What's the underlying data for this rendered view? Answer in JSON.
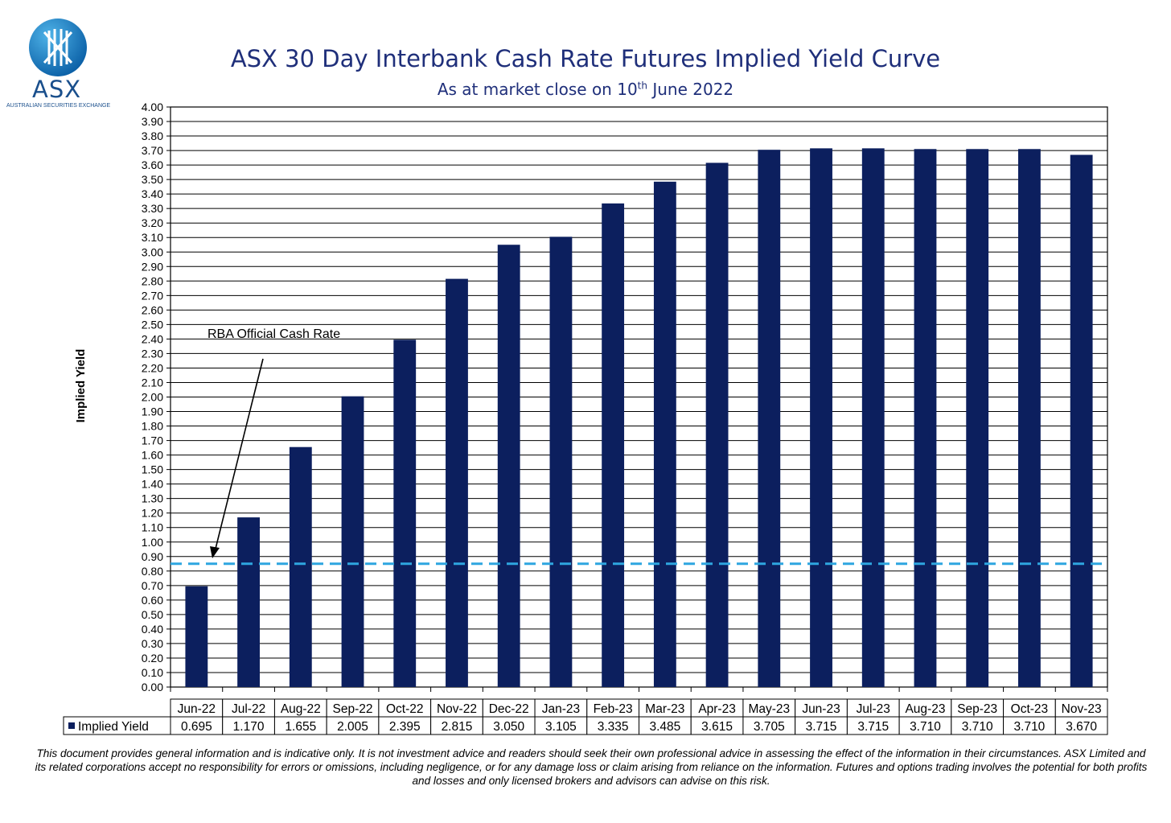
{
  "header": {
    "logo_text": "ASX",
    "logo_subtext": "AUSTRALIAN SECURITIES EXCHANGE",
    "title": "ASX 30 Day Interbank Cash Rate Futures Implied Yield Curve",
    "subtitle_prefix": "As at market close on 10",
    "subtitle_sup": "th",
    "subtitle_suffix": " June 2022"
  },
  "chart_data": {
    "type": "bar",
    "title": "ASX 30 Day Interbank Cash Rate Futures Implied Yield Curve",
    "subtitle": "As at market close on 10th June 2022",
    "ylabel": "Implied Yield",
    "xlabel": "",
    "ylim": [
      0,
      4.0
    ],
    "ytick_step": 0.1,
    "grid": true,
    "categories": [
      "Jun-22",
      "Jul-22",
      "Aug-22",
      "Sep-22",
      "Oct-22",
      "Nov-22",
      "Dec-22",
      "Jan-23",
      "Feb-23",
      "Mar-23",
      "Apr-23",
      "May-23",
      "Jun-23",
      "Jul-23",
      "Aug-23",
      "Sep-23",
      "Oct-23",
      "Nov-23"
    ],
    "series": [
      {
        "name": "Implied Yield",
        "values": [
          0.695,
          1.17,
          1.655,
          2.005,
          2.395,
          2.815,
          3.05,
          3.105,
          3.335,
          3.485,
          3.615,
          3.705,
          3.715,
          3.715,
          3.71,
          3.71,
          3.71,
          3.67
        ],
        "value_labels": [
          "0.695",
          "1.170",
          "1.655",
          "2.005",
          "2.395",
          "2.815",
          "3.050",
          "3.105",
          "3.335",
          "3.485",
          "3.615",
          "3.705",
          "3.715",
          "3.715",
          "3.710",
          "3.710",
          "3.710",
          "3.670"
        ]
      }
    ],
    "reference_line": {
      "value": 0.85,
      "style": "dashed"
    },
    "annotation": {
      "text": "RBA Official Cash Rate"
    },
    "colors": {
      "bar": "#0c1f5e",
      "reference_line": "#2ea6e0",
      "grid": "#000000",
      "text": "#000000"
    },
    "legend": "data table below x-axis"
  },
  "footer": {
    "disclaimer": "This document provides general information and is indicative only. It is not investment advice and readers should seek their own professional advice in assessing the effect of the information in their circumstances. ASX Limited and its related corporations accept no responsibility for errors or omissions, including negligence, or for any damage loss or claim arising from reliance on the information. Futures and options trading involves the potential for both profits and losses and only licensed brokers and advisors can advise on this risk."
  }
}
